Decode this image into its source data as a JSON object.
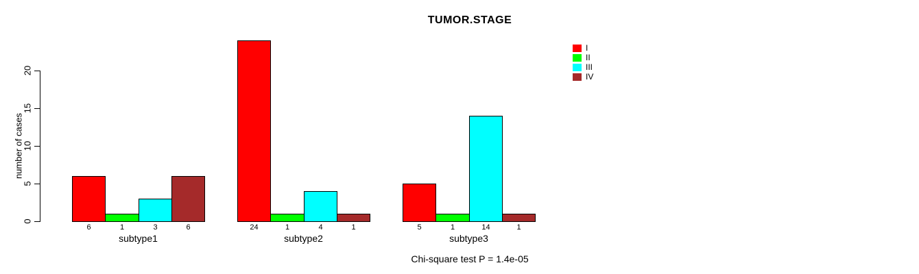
{
  "chart_data": {
    "type": "bar",
    "title": "TUMOR.STAGE",
    "ylabel": "number of cases",
    "xlabel": "",
    "footnote": "Chi-square test P = 1.4e-05",
    "ylim": [
      0,
      20
    ],
    "yticks": [
      0,
      5,
      10,
      15,
      20
    ],
    "grid": false,
    "legend_position": "top-right",
    "categories": [
      "subtype1",
      "subtype2",
      "subtype3"
    ],
    "series": [
      {
        "name": "I",
        "color": "#ff0000",
        "values": [
          6,
          24,
          5
        ]
      },
      {
        "name": "II",
        "color": "#00ff00",
        "values": [
          1,
          1,
          1
        ]
      },
      {
        "name": "III",
        "color": "#00ffff",
        "values": [
          3,
          4,
          14
        ]
      },
      {
        "name": "IV",
        "color": "#a52a2a",
        "values": [
          6,
          1,
          1
        ]
      }
    ],
    "groups": [
      {
        "label": "subtype1",
        "values": [
          6,
          1,
          3,
          6
        ],
        "value_labels": [
          "6",
          "1",
          "3",
          "6"
        ]
      },
      {
        "label": "subtype2",
        "values": [
          24,
          1,
          4,
          1
        ],
        "value_labels": [
          "24",
          "1",
          "4",
          "1"
        ]
      },
      {
        "label": "subtype3",
        "values": [
          5,
          1,
          14,
          1
        ],
        "value_labels": [
          "5",
          "1",
          "14",
          "1"
        ]
      }
    ],
    "bar_border_color": "#000000",
    "axis_color": "#000000",
    "background_color": "#ffffff"
  }
}
